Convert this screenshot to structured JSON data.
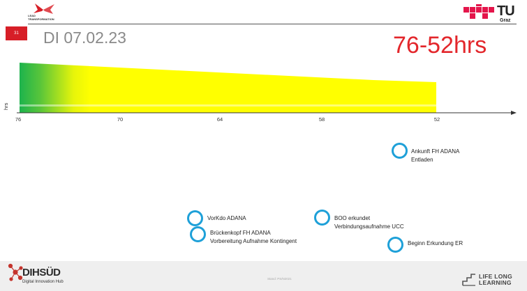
{
  "header": {
    "slide_number": "31",
    "title": "DI 07.02.23",
    "hours_range": "76-52hrs",
    "lead_logo_text": [
      "LEAD",
      "TRANSFORMATION"
    ],
    "tu_logo_text": "TU",
    "tu_logo_sub": "Graz"
  },
  "timeline": {
    "axis_unit": "hrs",
    "ticks": [
      "76",
      "70",
      "64",
      "58",
      "52"
    ],
    "colors": {
      "green": "#1db34d",
      "yellow": "#ffff00",
      "accent": "#1ea0d8"
    }
  },
  "events": [
    {
      "lines": [
        "Ankunft FH ADANA",
        "Entladen"
      ]
    },
    {
      "lines": [
        "VorKdo ADANA"
      ]
    },
    {
      "lines": [
        "Brückenkopf FH ADANA",
        "Vorbereitung Aufnahme Kontingent"
      ]
    },
    {
      "lines": [
        "BOO erkundet",
        "Verbindungsaufnahme UCC"
      ]
    },
    {
      "lines": [
        "Beginn Erkundung ER"
      ]
    }
  ],
  "footer": {
    "dih_name": "DIHSÜD",
    "dih_sub": "Digital Innovation Hub",
    "note": "Stand: PS/N2021",
    "lll_text": [
      "LIFE LONG",
      "LEARNING"
    ]
  }
}
